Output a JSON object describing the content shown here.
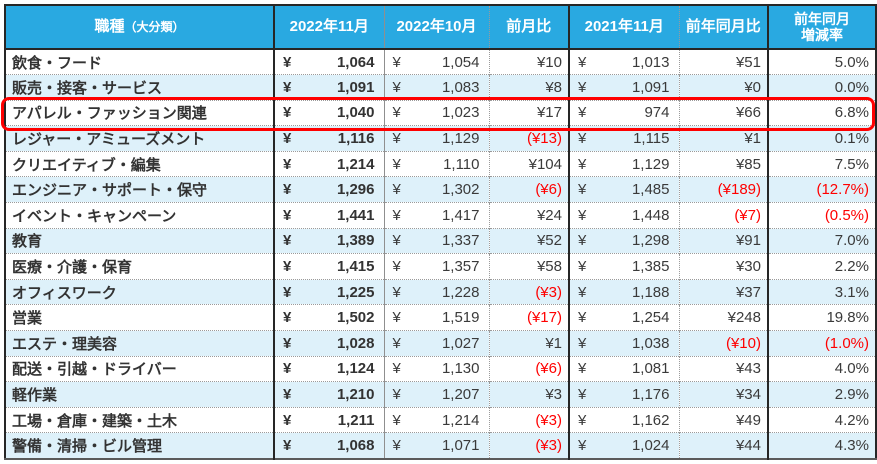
{
  "meta": {
    "currency_symbol": "¥"
  },
  "header": {
    "job_category": "職種",
    "job_category_sub": "（大分類）",
    "nov2022": "2022年11月",
    "oct2022": "2022年10月",
    "mom": "前月比",
    "nov2021": "2021年11月",
    "yoy": "前年同月比",
    "yoy_rate_line1": "前年同月",
    "yoy_rate_line2": "増減率"
  },
  "chart_data": {
    "type": "table",
    "columns": [
      "職種（大分類）",
      "2022年11月",
      "2022年10月",
      "前月比",
      "2021年11月",
      "前年同月比",
      "前年同月増減率"
    ],
    "rows": [
      {
        "category": "飲食・フード",
        "nov2022": "1,064",
        "oct2022": "1,054",
        "mom": "¥10",
        "nov2021": "1,013",
        "yoy": "¥51",
        "yoy_rate": "5.0%"
      },
      {
        "category": "販売・接客・サービス",
        "nov2022": "1,091",
        "oct2022": "1,083",
        "mom": "¥8",
        "nov2021": "1,091",
        "yoy": "¥0",
        "yoy_rate": "0.0%"
      },
      {
        "category": "アパレル・ファッション関連",
        "nov2022": "1,040",
        "oct2022": "1,023",
        "mom": "¥17",
        "nov2021": "974",
        "yoy": "¥66",
        "yoy_rate": "6.8%"
      },
      {
        "category": "レジャー・アミューズメント",
        "nov2022": "1,116",
        "oct2022": "1,129",
        "mom": "(¥13)",
        "nov2021": "1,115",
        "yoy": "¥1",
        "yoy_rate": "0.1%"
      },
      {
        "category": "クリエイティブ・編集",
        "nov2022": "1,214",
        "oct2022": "1,110",
        "mom": "¥104",
        "nov2021": "1,129",
        "yoy": "¥85",
        "yoy_rate": "7.5%"
      },
      {
        "category": "エンジニア・サポート・保守",
        "nov2022": "1,296",
        "oct2022": "1,302",
        "mom": "(¥6)",
        "nov2021": "1,485",
        "yoy": "(¥189)",
        "yoy_rate": "(12.7%)"
      },
      {
        "category": "イベント・キャンペーン",
        "nov2022": "1,441",
        "oct2022": "1,417",
        "mom": "¥24",
        "nov2021": "1,448",
        "yoy": "(¥7)",
        "yoy_rate": "(0.5%)"
      },
      {
        "category": "教育",
        "nov2022": "1,389",
        "oct2022": "1,337",
        "mom": "¥52",
        "nov2021": "1,298",
        "yoy": "¥91",
        "yoy_rate": "7.0%"
      },
      {
        "category": "医療・介護・保育",
        "nov2022": "1,415",
        "oct2022": "1,357",
        "mom": "¥58",
        "nov2021": "1,385",
        "yoy": "¥30",
        "yoy_rate": "2.2%"
      },
      {
        "category": "オフィスワーク",
        "nov2022": "1,225",
        "oct2022": "1,228",
        "mom": "(¥3)",
        "nov2021": "1,188",
        "yoy": "¥37",
        "yoy_rate": "3.1%"
      },
      {
        "category": "営業",
        "nov2022": "1,502",
        "oct2022": "1,519",
        "mom": "(¥17)",
        "nov2021": "1,254",
        "yoy": "¥248",
        "yoy_rate": "19.8%"
      },
      {
        "category": "エステ・理美容",
        "nov2022": "1,028",
        "oct2022": "1,027",
        "mom": "¥1",
        "nov2021": "1,038",
        "yoy": "(¥10)",
        "yoy_rate": "(1.0%)"
      },
      {
        "category": "配送・引越・ドライバー",
        "nov2022": "1,124",
        "oct2022": "1,130",
        "mom": "(¥6)",
        "nov2021": "1,081",
        "yoy": "¥43",
        "yoy_rate": "4.0%"
      },
      {
        "category": "軽作業",
        "nov2022": "1,210",
        "oct2022": "1,207",
        "mom": "¥3",
        "nov2021": "1,176",
        "yoy": "¥34",
        "yoy_rate": "2.9%"
      },
      {
        "category": "工場・倉庫・建築・土木",
        "nov2022": "1,211",
        "oct2022": "1,214",
        "mom": "(¥3)",
        "nov2021": "1,162",
        "yoy": "¥49",
        "yoy_rate": "4.2%"
      },
      {
        "category": "警備・清掃・ビル管理",
        "nov2022": "1,068",
        "oct2022": "1,071",
        "mom": "(¥3)",
        "nov2021": "1,024",
        "yoy": "¥44",
        "yoy_rate": "4.3%"
      }
    ],
    "highlighted_row_index": 2,
    "highlighted_row": "アパレル・ファッション関連",
    "negative_format": "parentheses-red"
  },
  "colors": {
    "header_bg": "#29A9E1",
    "header_text": "#FFFFFF",
    "row_alt_bg": "#DEF1FA",
    "body_text": "#3A3A3A",
    "negative": "#FF0000",
    "highlight_border": "#FF0000"
  }
}
